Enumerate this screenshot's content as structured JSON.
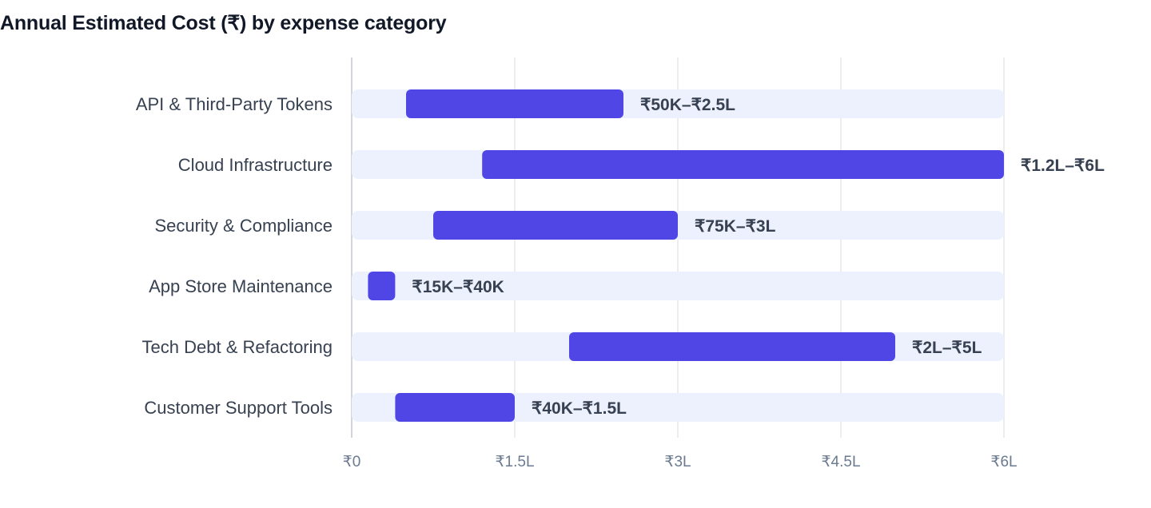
{
  "chart_data": {
    "type": "bar",
    "subtype": "floating-range-horizontal",
    "title": "Annual Estimated Cost (₹) by expense category",
    "xlabel": "",
    "ylabel": "",
    "xlim": [
      0,
      600000
    ],
    "grid": true,
    "ticks": [
      {
        "value": 0,
        "label": "₹0"
      },
      {
        "value": 150000,
        "label": "₹1.5L"
      },
      {
        "value": 300000,
        "label": "₹3L"
      },
      {
        "value": 450000,
        "label": "₹4.5L"
      },
      {
        "value": 600000,
        "label": "₹6L"
      }
    ],
    "categories": [
      "API & Third-Party Tokens",
      "Cloud Infrastructure",
      "Security & Compliance",
      "App Store Maintenance",
      "Tech Debt & Refactoring",
      "Customer Support Tools"
    ],
    "ranges": [
      {
        "low": 50000,
        "high": 250000,
        "label": "₹50K–₹2.5L"
      },
      {
        "low": 120000,
        "high": 600000,
        "label": "₹1.2L–₹6L"
      },
      {
        "low": 75000,
        "high": 300000,
        "label": "₹75K–₹3L"
      },
      {
        "low": 15000,
        "high": 40000,
        "label": "₹15K–₹40K"
      },
      {
        "low": 200000,
        "high": 500000,
        "label": "₹2L–₹5L"
      },
      {
        "low": 40000,
        "high": 150000,
        "label": "₹40K–₹1.5L"
      }
    ],
    "colors": {
      "bar": "#4f46e5",
      "track": "#edf1fe",
      "grid": "#e5e7eb",
      "axis": "#d1d5db",
      "text": "#374151",
      "tick": "#6b7a90",
      "title": "#111827"
    }
  }
}
